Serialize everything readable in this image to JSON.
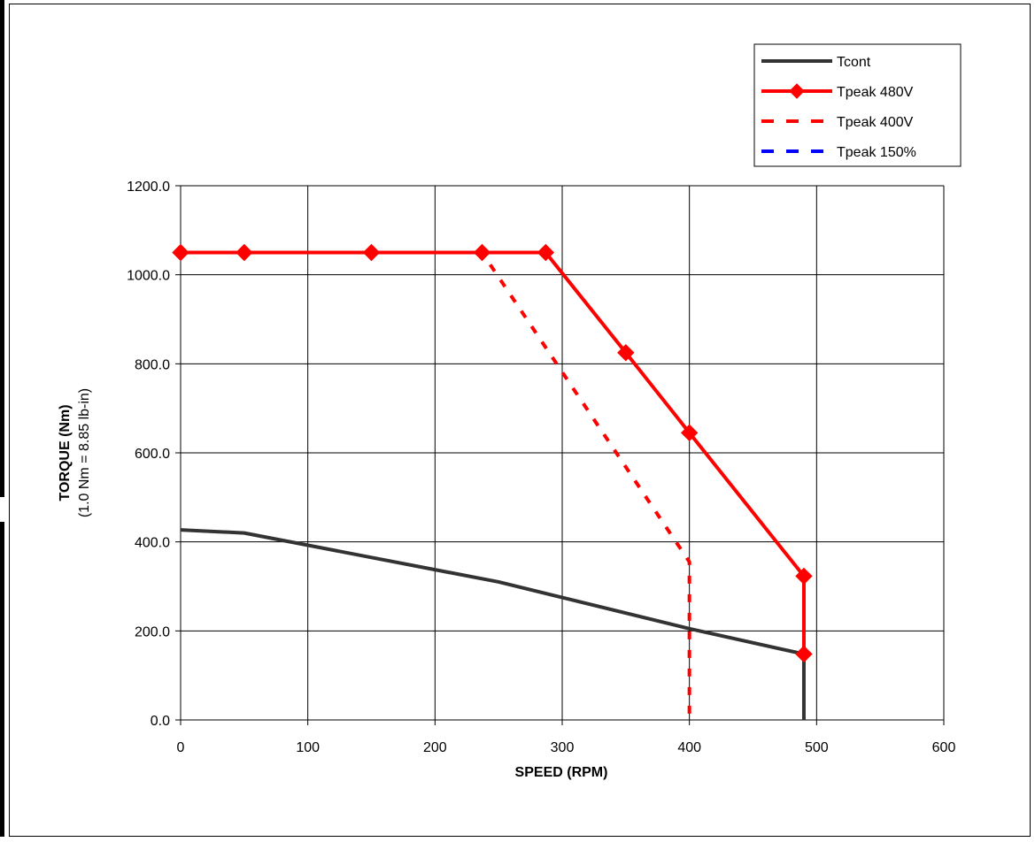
{
  "chart_data": {
    "type": "line",
    "xlabel": "SPEED (RPM)",
    "ylabel": "TORQUE (Nm)",
    "ylabel_sub": "(1.0 Nm = 8.85 lb-in)",
    "xlim": [
      0,
      600
    ],
    "ylim": [
      0,
      1200
    ],
    "xticks": [
      0,
      100,
      200,
      300,
      400,
      500,
      600
    ],
    "yticks": [
      0,
      200,
      400,
      600,
      800,
      1000,
      1200
    ],
    "xtick_labels": [
      "0",
      "100",
      "200",
      "300",
      "400",
      "500",
      "600"
    ],
    "ytick_labels": [
      "0.0",
      "200.0",
      "400.0",
      "600.0",
      "800.0",
      "1000.0",
      "1200.0"
    ],
    "grid": true,
    "legend_position": "top-right",
    "series": [
      {
        "name": "Tcont",
        "color": "#333333",
        "style": "solid",
        "marker": "none",
        "points": [
          [
            0,
            427
          ],
          [
            50,
            420
          ],
          [
            150,
            365
          ],
          [
            250,
            310
          ],
          [
            400,
            205
          ],
          [
            490,
            148
          ],
          [
            490,
            0
          ]
        ]
      },
      {
        "name": "Tpeak 480V",
        "color": "#ff0000",
        "style": "solid",
        "marker": "diamond",
        "points": [
          [
            0,
            1050
          ],
          [
            50,
            1050
          ],
          [
            150,
            1050
          ],
          [
            237,
            1050
          ],
          [
            287,
            1050
          ],
          [
            350,
            825
          ],
          [
            400,
            645
          ],
          [
            490,
            323
          ],
          [
            490,
            148
          ]
        ]
      },
      {
        "name": "Tpeak 400V",
        "color": "#ff0000",
        "style": "dashed",
        "marker": "none",
        "points": [
          [
            0,
            1050
          ],
          [
            237,
            1050
          ],
          [
            400,
            355
          ],
          [
            400,
            0
          ]
        ]
      },
      {
        "name": "Tpeak 150%",
        "color": "#0000ff",
        "style": "dashed",
        "marker": "none",
        "points": []
      }
    ]
  }
}
